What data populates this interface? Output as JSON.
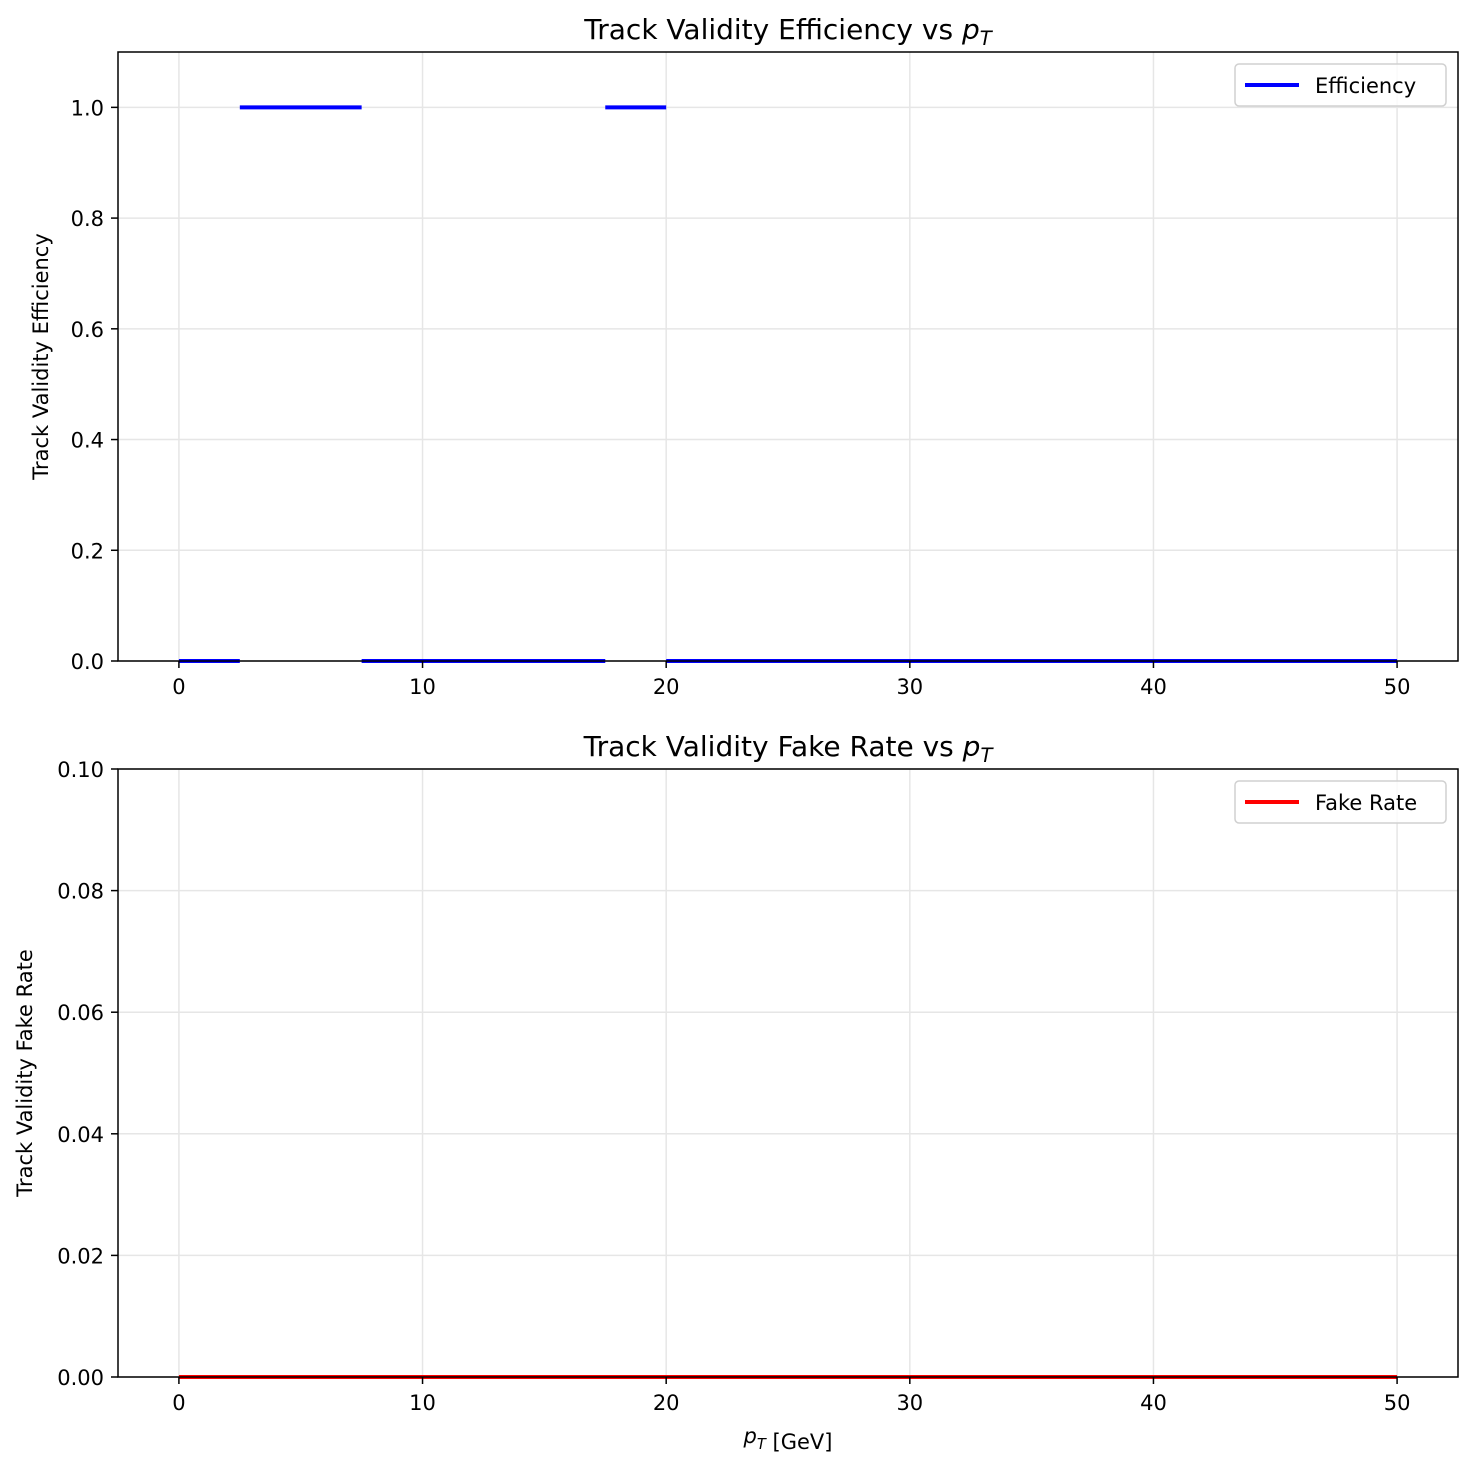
{
  "chart_data": [
    {
      "type": "line",
      "drawstyle": "steps",
      "title": "Track Validity Efficiency vs ",
      "title_math": "pT",
      "xlabel": "",
      "ylabel": "Track Validity Efficiency",
      "xlim": [
        -2.5,
        52.5
      ],
      "ylim": [
        0.0,
        1.1
      ],
      "xticks": [
        0,
        10,
        20,
        30,
        40,
        50
      ],
      "xtick_labels": [
        "0",
        "10",
        "20",
        "30",
        "40",
        "50"
      ],
      "yticks": [
        0.0,
        0.2,
        0.4,
        0.6,
        0.8,
        1.0
      ],
      "ytick_labels": [
        "0.0",
        "0.2",
        "0.4",
        "0.6",
        "0.8",
        "1.0"
      ],
      "grid": true,
      "legend_position": "upper right",
      "series": [
        {
          "name": "Efficiency",
          "color": "#0000ff",
          "segments": [
            {
              "x0": 0.0,
              "x1": 2.5,
              "y": 0.0
            },
            {
              "x0": 2.5,
              "x1": 7.5,
              "y": 1.0
            },
            {
              "x0": 7.5,
              "x1": 17.5,
              "y": 0.0
            },
            {
              "x0": 17.5,
              "x1": 20.0,
              "y": 1.0
            },
            {
              "x0": 20.0,
              "x1": 50.0,
              "y": 0.0
            }
          ]
        }
      ]
    },
    {
      "type": "line",
      "drawstyle": "steps",
      "title": "Track Validity Fake Rate vs ",
      "title_math": "pT",
      "xlabel": " [GeV]",
      "xlabel_math": "pT",
      "ylabel": "Track Validity Fake Rate",
      "xlim": [
        -2.5,
        52.5
      ],
      "ylim": [
        0.0,
        0.1
      ],
      "xticks": [
        0,
        10,
        20,
        30,
        40,
        50
      ],
      "xtick_labels": [
        "0",
        "10",
        "20",
        "30",
        "40",
        "50"
      ],
      "yticks": [
        0.0,
        0.02,
        0.04,
        0.06,
        0.08,
        0.1
      ],
      "ytick_labels": [
        "0.00",
        "0.02",
        "0.04",
        "0.06",
        "0.08",
        "0.10"
      ],
      "grid": true,
      "legend_position": "upper right",
      "series": [
        {
          "name": "Fake Rate",
          "color": "#ff0000",
          "segments": [
            {
              "x0": 0.0,
              "x1": 50.0,
              "y": 0.0
            }
          ]
        }
      ]
    }
  ]
}
